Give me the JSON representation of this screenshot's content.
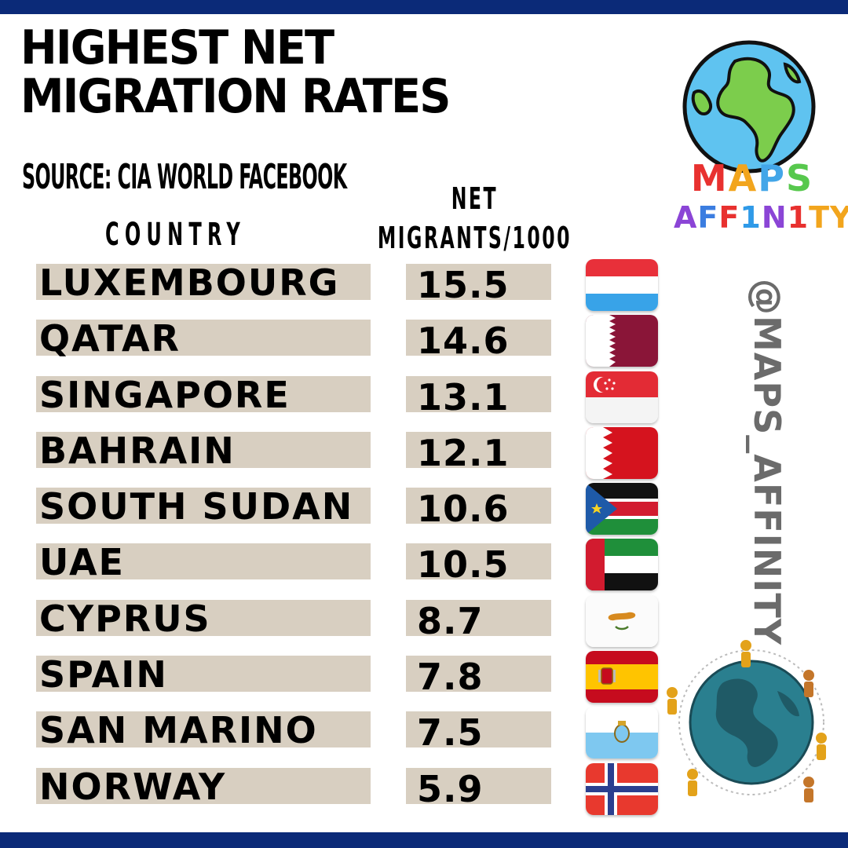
{
  "title_lines": [
    "HIGHEST NET",
    "MIGRATION RATES"
  ],
  "source": "SOURCE: CIA WORLD FACEBOOK",
  "columns": {
    "country": "COUNTRY",
    "value_lines": [
      "NET",
      "MIGRANTS/1000"
    ]
  },
  "brand": {
    "maps_letters": [
      {
        "ch": "M",
        "color": "#e8312f"
      },
      {
        "ch": "A",
        "color": "#f2a51d"
      },
      {
        "ch": "P",
        "color": "#43a6e8"
      },
      {
        "ch": "S",
        "color": "#57c84d"
      }
    ],
    "affinity_letters": [
      {
        "ch": "A",
        "color": "#8b45d6"
      },
      {
        "ch": "F",
        "color": "#3b7de0"
      },
      {
        "ch": "F",
        "color": "#e8312f"
      },
      {
        "ch": "1",
        "color": "#2f9ae8"
      },
      {
        "ch": "N",
        "color": "#8b45d6"
      },
      {
        "ch": "1",
        "color": "#e8312f"
      },
      {
        "ch": "T",
        "color": "#f2a51d"
      },
      {
        "ch": "Y",
        "color": "#f2a51d"
      }
    ],
    "handle": "@MAPS_AFFINITY"
  },
  "colors": {
    "band": "#0b2a78",
    "cell": "#d8cfc1"
  },
  "chart_data": {
    "type": "table",
    "title": "HIGHEST NET MIGRATION RATES",
    "columns": [
      "COUNTRY",
      "NET MIGRANTS/1000"
    ],
    "rows": [
      {
        "country": "LUXEMBOURG",
        "value": "15.5",
        "flag": "luxembourg-flag-icon"
      },
      {
        "country": "QATAR",
        "value": "14.6",
        "flag": "qatar-flag-icon"
      },
      {
        "country": "SINGAPORE",
        "value": "13.1",
        "flag": "singapore-flag-icon"
      },
      {
        "country": "BAHRAIN",
        "value": "12.1",
        "flag": "bahrain-flag-icon"
      },
      {
        "country": "SOUTH SUDAN",
        "value": "10.6",
        "flag": "south-sudan-flag-icon"
      },
      {
        "country": "UAE",
        "value": "10.5",
        "flag": "uae-flag-icon"
      },
      {
        "country": "CYPRUS",
        "value": "8.7",
        "flag": "cyprus-flag-icon"
      },
      {
        "country": "SPAIN",
        "value": "7.8",
        "flag": "spain-flag-icon"
      },
      {
        "country": "SAN MARINO",
        "value": "7.5",
        "flag": "san-marino-flag-icon"
      },
      {
        "country": "NORWAY",
        "value": "5.9",
        "flag": "norway-flag-icon"
      }
    ]
  }
}
